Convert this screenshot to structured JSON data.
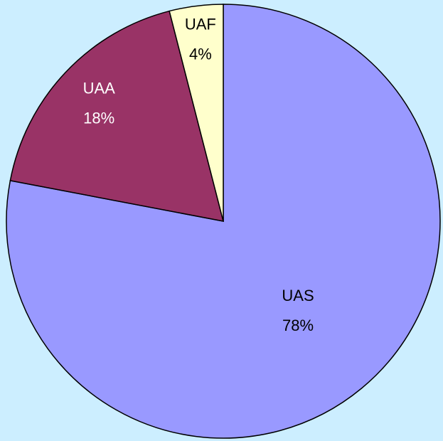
{
  "chart_data": {
    "type": "pie",
    "categories": [
      "UAS",
      "UAA",
      "UAF"
    ],
    "values": [
      78,
      18,
      4
    ],
    "value_labels": [
      "78%",
      "18%",
      "4%"
    ],
    "colors": [
      "#9999ff",
      "#993366",
      "#ffffcc"
    ],
    "start_angle": 0,
    "direction": "clockwise"
  }
}
